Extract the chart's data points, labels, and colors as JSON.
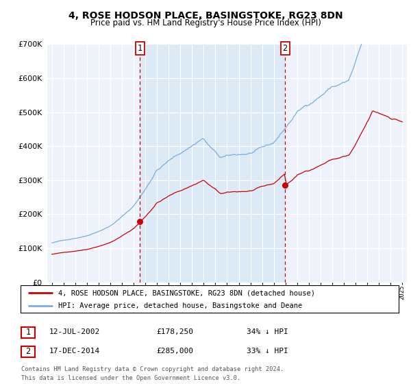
{
  "title": "4, ROSE HODSON PLACE, BASINGSTOKE, RG23 8DN",
  "subtitle": "Price paid vs. HM Land Registry's House Price Index (HPI)",
  "legend_line1": "4, ROSE HODSON PLACE, BASINGSTOKE, RG23 8DN (detached house)",
  "legend_line2": "HPI: Average price, detached house, Basingstoke and Deane",
  "footnote1": "Contains HM Land Registry data © Crown copyright and database right 2024.",
  "footnote2": "This data is licensed under the Open Government Licence v3.0.",
  "marker1_label": "1",
  "marker2_label": "2",
  "marker1_date": "12-JUL-2002",
  "marker1_price": "£178,250",
  "marker1_hpi": "34% ↓ HPI",
  "marker2_date": "17-DEC-2014",
  "marker2_price": "£285,000",
  "marker2_hpi": "33% ↓ HPI",
  "marker1_x": 2002.54,
  "marker2_x": 2014.96,
  "marker1_y": 178250,
  "marker2_y": 285000,
  "price_color": "#cc0000",
  "hpi_color": "#7aace0",
  "highlight_color": "#dce9f7",
  "marker_box_color": "#cc0000",
  "background_color": "#eef3fb",
  "ylim": [
    0,
    700000
  ],
  "xlim": [
    1994.6,
    2025.4
  ],
  "yticks": [
    0,
    100000,
    200000,
    300000,
    400000,
    500000,
    600000,
    700000
  ]
}
